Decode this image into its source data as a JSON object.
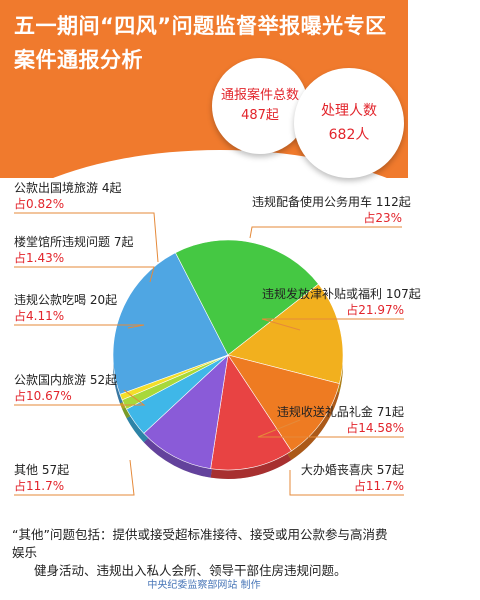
{
  "header": {
    "title_line1": "五一期间“四风”问题监督举报曝光专区",
    "title_line2": "案件通报分析",
    "total_cases_label": "通报案件总数",
    "total_cases_value": "487起",
    "people_label": "处理人数",
    "people_value": "682人"
  },
  "chart_data": {
    "type": "pie",
    "title": "",
    "slices": [
      {
        "name": "违规配备使用公务用车",
        "count_label": "112起",
        "value": 23,
        "percent_label": "占23%",
        "color": "#4fa6e3"
      },
      {
        "name": "违规发放津补贴或福利",
        "count_label": "107起",
        "value": 21.97,
        "percent_label": "占21.97%",
        "color": "#45c843"
      },
      {
        "name": "违规收送礼品礼金",
        "count_label": "71起",
        "value": 14.58,
        "percent_label": "占14.58%",
        "color": "#f2b01e"
      },
      {
        "name": "大办婚丧喜庆",
        "count_label": "57起",
        "value": 11.7,
        "percent_label": "占11.7%",
        "color": "#ee7b22"
      },
      {
        "name": "其他",
        "count_label": "57起",
        "value": 11.7,
        "percent_label": "占11.7%",
        "color": "#e84343"
      },
      {
        "name": "公款国内旅游",
        "count_label": "52起",
        "value": 10.67,
        "percent_label": "占10.67%",
        "color": "#8a5bd8"
      },
      {
        "name": "违规公款吃喝",
        "count_label": "20起",
        "value": 4.11,
        "percent_label": "占4.11%",
        "color": "#3fb7e8"
      },
      {
        "name": "楼堂馆所违规问题",
        "count_label": "7起",
        "value": 1.43,
        "percent_label": "占1.43%",
        "color": "#a8d83a"
      },
      {
        "name": "公款出国境旅游",
        "count_label": "4起",
        "value": 0.82,
        "percent_label": "占0.82%",
        "color": "#f3de2a"
      }
    ]
  },
  "note": {
    "line1": "“其他”问题包括：提供或接受超标准接待、接受或用公款参与高消费娱乐",
    "line2": "健身活动、违规出入私人会所、领导干部住房违规问题。"
  },
  "source": "中央纪委监察部网站 制作"
}
